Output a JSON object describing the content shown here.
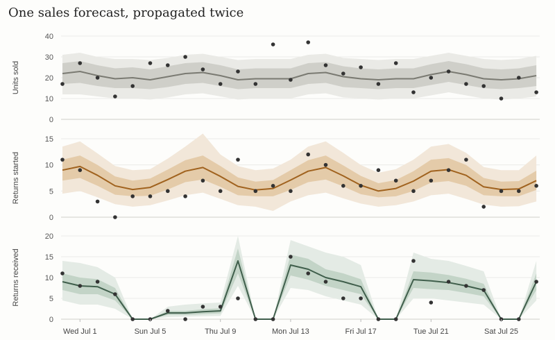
{
  "title": "One sales forecast, propagated twice",
  "x_ticks": [
    "Wed Jul 1",
    "Sun Jul 5",
    "Thu Jul 9",
    "Mon Jul 13",
    "Fri Jul 17",
    "Tue Jul 21",
    "Sat Jul 25"
  ],
  "chart_data": [
    {
      "type": "line",
      "name": "units",
      "ylabel": "Units sold",
      "ylim": [
        0,
        40
      ],
      "yticks": [
        0,
        10,
        20,
        30,
        40
      ],
      "grid": true,
      "color": "#7a7a72",
      "band_outer": "#eaeae6",
      "band_inner": "#cfcfc9",
      "x": [
        "Jun 30",
        "Jul 1",
        "Jul 2",
        "Jul 3",
        "Jul 4",
        "Jul 5",
        "Jul 6",
        "Jul 7",
        "Jul 8",
        "Jul 9",
        "Jul 10",
        "Jul 11",
        "Jul 12",
        "Jul 13",
        "Jul 14",
        "Jul 15",
        "Jul 16",
        "Jul 17",
        "Jul 18",
        "Jul 19",
        "Jul 20",
        "Jul 21",
        "Jul 22",
        "Jul 23",
        "Jul 24",
        "Jul 25",
        "Jul 26",
        "Jul 27"
      ],
      "forecast": [
        22,
        23,
        21,
        19.5,
        20,
        19,
        20.5,
        22,
        22.5,
        21,
        19,
        19.5,
        19.5,
        19.5,
        22,
        22.5,
        20.5,
        19.5,
        19,
        19.5,
        19.5,
        21.5,
        23,
        21.5,
        19.5,
        19,
        19.5,
        21
      ],
      "inner_low": [
        17,
        17.5,
        16,
        15,
        15,
        14.5,
        15.5,
        17,
        17.5,
        16,
        14.5,
        15,
        15,
        15,
        17,
        17.5,
        15.5,
        15,
        14.5,
        15,
        15,
        16.5,
        18,
        16.5,
        15,
        14.5,
        15,
        16
      ],
      "inner_high": [
        27,
        28,
        26,
        24.5,
        25,
        24,
        25.5,
        27,
        27.5,
        26,
        24,
        24.5,
        24.5,
        24.5,
        27,
        27.5,
        25.5,
        24.5,
        24,
        24.5,
        24.5,
        26.5,
        28,
        26.5,
        24.5,
        24,
        24.5,
        26
      ],
      "outer_low": [
        12,
        12,
        11,
        10,
        10,
        9.5,
        10.5,
        12,
        12.5,
        11,
        9.5,
        10,
        10,
        10,
        12,
        12.5,
        10.5,
        10,
        9.5,
        10,
        10,
        11.5,
        13,
        11.5,
        10,
        9.5,
        10,
        11
      ],
      "outer_high": [
        31,
        32,
        30,
        29,
        29,
        28.5,
        29.5,
        31,
        31.5,
        30,
        28.5,
        29,
        29,
        29,
        31,
        31.5,
        29.5,
        29,
        28.5,
        29,
        29,
        30.5,
        32,
        30.5,
        29,
        28.5,
        29,
        30.5
      ],
      "actual": [
        17,
        27,
        20,
        11,
        16,
        27,
        26,
        30,
        24,
        17,
        23,
        17,
        36,
        19,
        37,
        26,
        22,
        25,
        17,
        27,
        13,
        20,
        23,
        17,
        16,
        10,
        20,
        13
      ]
    },
    {
      "type": "line",
      "name": "started",
      "ylabel": "Returns started",
      "ylim": [
        0,
        15
      ],
      "yticks": [
        0,
        5,
        10,
        15
      ],
      "grid": true,
      "color": "#a0621e",
      "band_outer": "#f2e7d9",
      "band_inner": "#e4cba9",
      "x": [
        "Jun 30",
        "Jul 1",
        "Jul 2",
        "Jul 3",
        "Jul 4",
        "Jul 5",
        "Jul 6",
        "Jul 7",
        "Jul 8",
        "Jul 9",
        "Jul 10",
        "Jul 11",
        "Jul 12",
        "Jul 13",
        "Jul 14",
        "Jul 15",
        "Jul 16",
        "Jul 17",
        "Jul 18",
        "Jul 19",
        "Jul 20",
        "Jul 21",
        "Jul 22",
        "Jul 23",
        "Jul 24",
        "Jul 25",
        "Jul 26",
        "Jul 27"
      ],
      "forecast": [
        9,
        9.7,
        8,
        6,
        5.3,
        5.7,
        7.2,
        8.8,
        9.5,
        7.8,
        5.9,
        5.2,
        5.5,
        7.1,
        8.8,
        9.5,
        7.9,
        6.1,
        5,
        5.5,
        6.9,
        8.8,
        9.1,
        8,
        5.8,
        5.3,
        5.4,
        7
      ],
      "inner_low": [
        7,
        7.5,
        6,
        4.3,
        4,
        4.1,
        5.3,
        6.7,
        7.2,
        5.8,
        4.2,
        4,
        4,
        5.2,
        6.7,
        7.2,
        5.9,
        4.4,
        3.8,
        4,
        5,
        6.6,
        6.9,
        6,
        4.2,
        4,
        4,
        5.2
      ],
      "inner_high": [
        11,
        11.8,
        10,
        7.8,
        7,
        7.4,
        9.1,
        10.9,
        11.8,
        9.8,
        7.6,
        6.8,
        7.1,
        9,
        10.9,
        11.8,
        9.9,
        7.9,
        6.5,
        7.1,
        8.8,
        11,
        11.3,
        10,
        7.5,
        6.8,
        6.9,
        8.9
      ],
      "outer_low": [
        4.5,
        5,
        3.8,
        2.5,
        2,
        2.3,
        3.2,
        4.2,
        4.7,
        3.5,
        2.3,
        2,
        1.2,
        3,
        4.2,
        4.7,
        3.6,
        2.6,
        2,
        2.3,
        3,
        4.2,
        4.5,
        3.5,
        2.4,
        2,
        2.1,
        3
      ],
      "outer_high": [
        13.5,
        14.5,
        12.2,
        9.8,
        9,
        9.2,
        11.2,
        13.5,
        16,
        12,
        9.8,
        9,
        9.3,
        11,
        13.5,
        14.5,
        12.3,
        10,
        8.5,
        9.2,
        11,
        13.5,
        14,
        12.3,
        9.6,
        9,
        9,
        11.8
      ],
      "actual": [
        11,
        9,
        3,
        0,
        4,
        4,
        5,
        4,
        7,
        5,
        11,
        5,
        6,
        5,
        12,
        10,
        6,
        6,
        9,
        7,
        5,
        7,
        9,
        11,
        2,
        5,
        5,
        6
      ]
    },
    {
      "type": "line",
      "name": "received",
      "ylabel": "Returns received",
      "ylim": [
        0,
        20
      ],
      "yticks": [
        0,
        5,
        10,
        15,
        20
      ],
      "grid": true,
      "color": "#3f5e4b",
      "band_outer": "#e4ebe5",
      "band_inner": "#c3d4c7",
      "x": [
        "Jun 30",
        "Jul 1",
        "Jul 2",
        "Jul 3",
        "Jul 4",
        "Jul 5",
        "Jul 6",
        "Jul 7",
        "Jul 8",
        "Jul 9",
        "Jul 10",
        "Jul 11",
        "Jul 12",
        "Jul 13",
        "Jul 14",
        "Jul 15",
        "Jul 16",
        "Jul 17",
        "Jul 18",
        "Jul 19",
        "Jul 20",
        "Jul 21",
        "Jul 22",
        "Jul 23",
        "Jul 24",
        "Jul 25",
        "Jul 26",
        "Jul 27"
      ],
      "forecast": [
        9,
        8,
        7.8,
        6,
        0,
        0,
        1.5,
        1.5,
        1.8,
        2,
        14,
        0,
        0,
        13,
        12,
        10,
        9,
        7.8,
        0,
        0,
        9.5,
        9.2,
        8.8,
        8,
        7,
        0,
        0,
        9
      ],
      "inner_low": [
        7,
        6,
        6,
        4.5,
        0,
        0,
        1,
        1,
        1.2,
        1.4,
        11,
        0,
        0,
        10.5,
        9.5,
        8,
        7,
        6,
        0,
        0,
        7.5,
        7.2,
        7,
        6.3,
        5.5,
        0,
        0,
        7
      ],
      "inner_high": [
        11,
        10,
        9.6,
        7.5,
        0,
        0,
        2,
        2,
        2.4,
        2.6,
        17,
        0,
        0,
        15.5,
        14.5,
        12,
        11,
        9.6,
        0,
        0,
        11.5,
        11.2,
        10.6,
        9.7,
        8.5,
        0,
        0,
        11
      ],
      "outer_low": [
        4.5,
        3.5,
        3.5,
        2.5,
        0,
        0,
        0.5,
        0.6,
        0.7,
        0.8,
        8,
        0,
        0,
        7.5,
        7,
        5.5,
        4.5,
        3.5,
        0,
        0,
        5,
        5,
        4.5,
        4,
        3.5,
        0,
        0,
        4.5
      ],
      "outer_high": [
        14,
        13.5,
        12.5,
        10,
        0,
        0,
        3,
        3.5,
        3.8,
        4,
        20,
        0,
        0,
        19,
        17.5,
        16,
        15,
        13,
        0,
        0,
        16,
        14.5,
        14,
        12.8,
        11.5,
        0,
        0,
        14
      ],
      "actual": [
        11,
        8,
        9,
        6,
        0,
        0,
        2,
        0,
        3,
        3,
        5,
        0,
        0,
        15,
        11,
        9,
        5,
        5,
        0,
        0,
        14,
        4,
        9,
        8,
        7,
        0,
        0,
        9
      ]
    }
  ]
}
